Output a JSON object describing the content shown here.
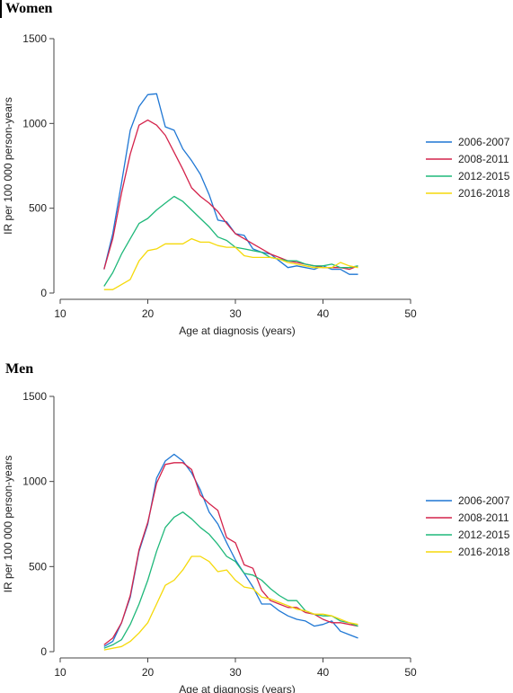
{
  "chart_data": [
    {
      "type": "line",
      "title": "Women",
      "xlabel": "Age at diagnosis (years)",
      "ylabel": "IR per 100 000 person-years",
      "xlim": [
        10,
        50
      ],
      "ylim": [
        0,
        1500
      ],
      "xticks": [
        "10",
        "20",
        "30",
        "40",
        "50"
      ],
      "yticks": [
        "0",
        "500",
        "1000",
        "1500"
      ],
      "legend_position": "right",
      "x": [
        15,
        16,
        17,
        18,
        19,
        20,
        21,
        22,
        23,
        24,
        25,
        26,
        27,
        28,
        29,
        30,
        31,
        32,
        33,
        34,
        35,
        36,
        37,
        38,
        39,
        40,
        41,
        42,
        43,
        44
      ],
      "series": [
        {
          "name": "2006-2007",
          "color": "#1f77d4",
          "values": [
            140,
            350,
            650,
            960,
            1100,
            1170,
            1175,
            980,
            960,
            850,
            780,
            700,
            580,
            430,
            420,
            350,
            340,
            260,
            240,
            230,
            190,
            150,
            160,
            150,
            140,
            160,
            140,
            140,
            110,
            110
          ]
        },
        {
          "name": "2008-2011",
          "color": "#d4234b",
          "values": [
            140,
            320,
            590,
            820,
            990,
            1020,
            990,
            930,
            830,
            730,
            620,
            570,
            530,
            480,
            410,
            350,
            320,
            290,
            260,
            230,
            210,
            190,
            180,
            170,
            160,
            150,
            150,
            150,
            140,
            160
          ]
        },
        {
          "name": "2012-2015",
          "color": "#1fb87a",
          "values": [
            40,
            120,
            230,
            320,
            410,
            440,
            490,
            530,
            570,
            540,
            490,
            440,
            390,
            330,
            310,
            270,
            260,
            250,
            240,
            210,
            200,
            190,
            190,
            170,
            160,
            160,
            170,
            150,
            150,
            160
          ]
        },
        {
          "name": "2016-2018",
          "color": "#f5d90a",
          "values": [
            20,
            20,
            50,
            80,
            190,
            250,
            260,
            290,
            290,
            290,
            320,
            300,
            300,
            280,
            270,
            270,
            220,
            210,
            210,
            210,
            200,
            180,
            170,
            160,
            150,
            150,
            150,
            180,
            160,
            150
          ]
        }
      ]
    },
    {
      "type": "line",
      "title": "Men",
      "xlabel": "Age at diagnosis (years)",
      "ylabel": "IR per 100 000 person-years",
      "xlim": [
        10,
        50
      ],
      "ylim": [
        0,
        1500
      ],
      "xticks": [
        "10",
        "20",
        "30",
        "40",
        "50"
      ],
      "yticks": [
        "0",
        "500",
        "1000",
        "1500"
      ],
      "legend_position": "right",
      "x": [
        15,
        16,
        17,
        18,
        19,
        20,
        21,
        22,
        23,
        24,
        25,
        26,
        27,
        28,
        29,
        30,
        31,
        32,
        33,
        34,
        35,
        36,
        37,
        38,
        39,
        40,
        41,
        42,
        43,
        44
      ],
      "series": [
        {
          "name": "2006-2007",
          "color": "#1f77d4",
          "values": [
            30,
            60,
            170,
            320,
            590,
            750,
            1020,
            1120,
            1160,
            1120,
            1050,
            950,
            820,
            750,
            640,
            540,
            460,
            380,
            280,
            280,
            240,
            210,
            190,
            180,
            150,
            160,
            180,
            120,
            100,
            80
          ]
        },
        {
          "name": "2008-2011",
          "color": "#d4234b",
          "values": [
            40,
            80,
            170,
            330,
            600,
            760,
            990,
            1100,
            1110,
            1110,
            1070,
            920,
            870,
            830,
            670,
            640,
            510,
            490,
            360,
            300,
            280,
            260,
            260,
            230,
            220,
            190,
            170,
            170,
            160,
            150
          ]
        },
        {
          "name": "2012-2015",
          "color": "#1fb87a",
          "values": [
            20,
            40,
            70,
            160,
            280,
            420,
            590,
            730,
            790,
            820,
            780,
            730,
            690,
            630,
            560,
            530,
            460,
            450,
            420,
            370,
            330,
            300,
            300,
            240,
            220,
            210,
            210,
            180,
            170,
            150
          ]
        },
        {
          "name": "2016-2018",
          "color": "#f5d90a",
          "values": [
            10,
            20,
            30,
            60,
            110,
            170,
            280,
            390,
            420,
            480,
            560,
            560,
            530,
            470,
            480,
            420,
            380,
            370,
            320,
            310,
            290,
            270,
            250,
            240,
            220,
            220,
            210,
            190,
            170,
            160
          ]
        }
      ]
    }
  ]
}
